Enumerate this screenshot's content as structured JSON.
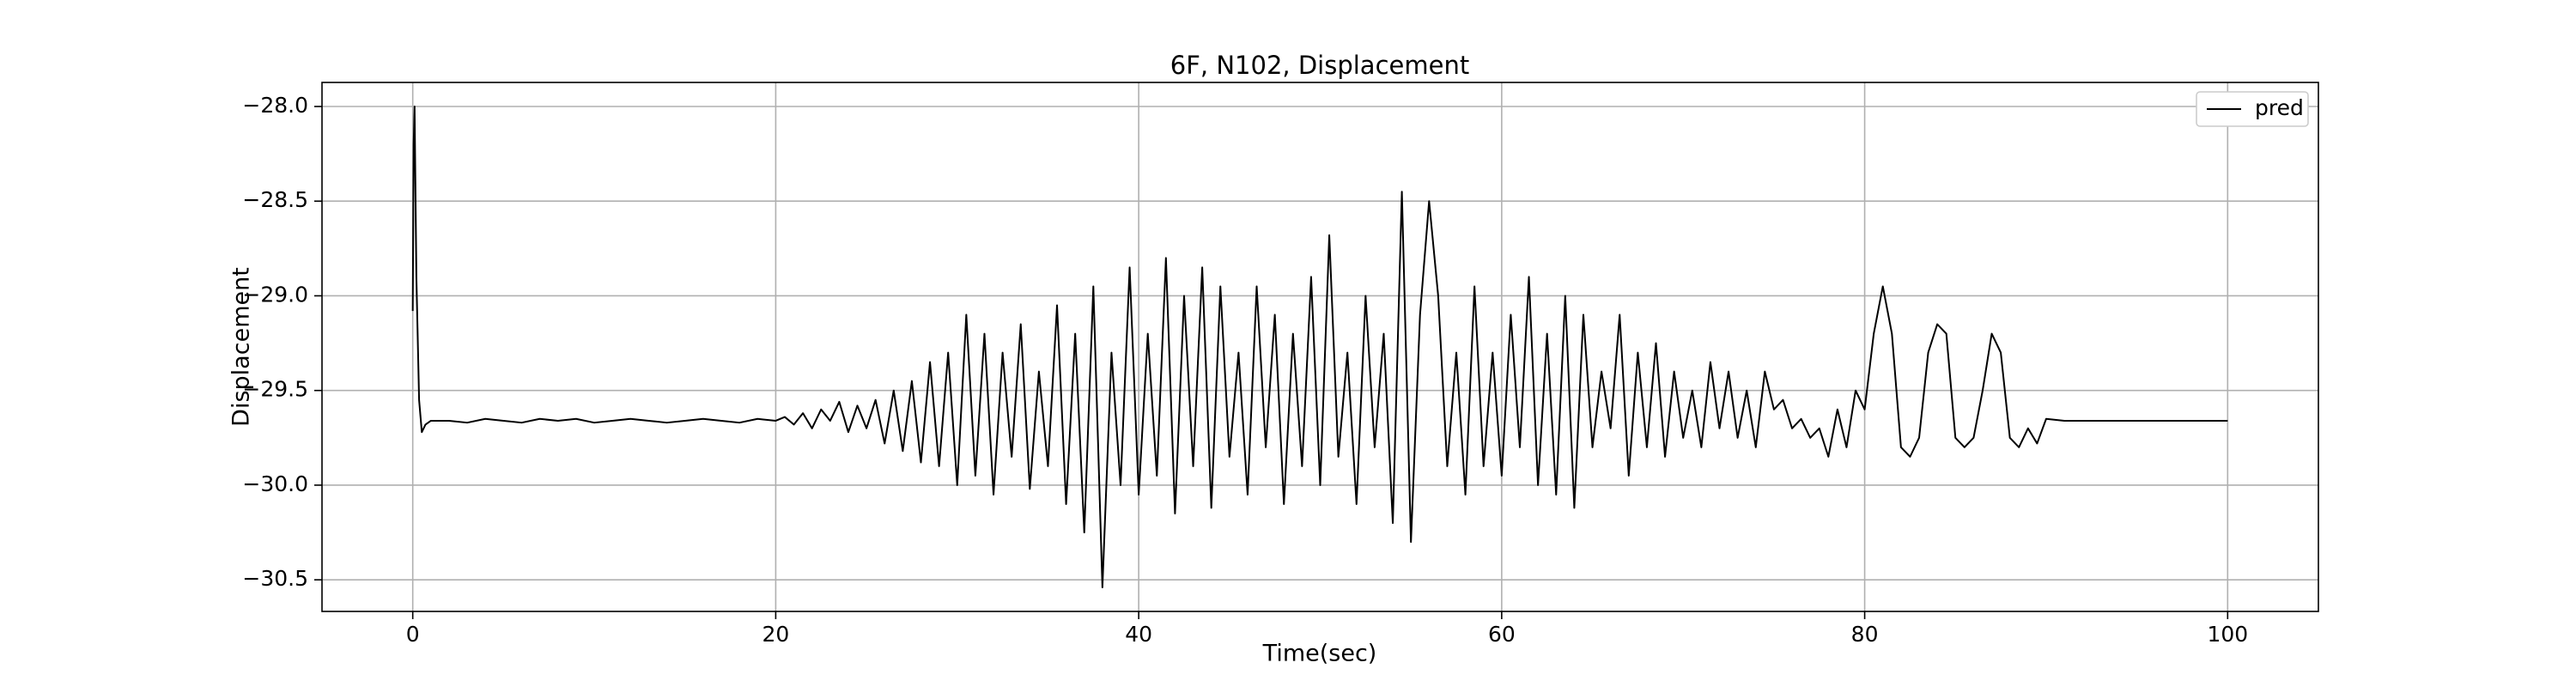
{
  "chart_data": {
    "type": "line",
    "title": "6F, N102, Displacement",
    "x_label": "Time(sec)",
    "y_label": "Displacement",
    "legend": "upper right",
    "grid": true,
    "xlim": [
      -5,
      105
    ],
    "ylim": [
      -30.667,
      -27.873
    ],
    "xticks": [
      0,
      20,
      40,
      60,
      80,
      100
    ],
    "yticks": [
      {
        "value": -28.0,
        "label": "−28.0"
      },
      {
        "value": -28.5,
        "label": "−28.5"
      },
      {
        "value": -29.0,
        "label": "−29.0"
      },
      {
        "value": -29.5,
        "label": "−29.5"
      },
      {
        "value": -30.0,
        "label": "−30.0"
      },
      {
        "value": -30.5,
        "label": "−30.5"
      }
    ],
    "x": [
      0,
      0.05,
      0.1,
      0.2,
      0.35,
      0.5,
      0.7,
      1,
      2,
      3,
      4,
      5,
      6,
      7,
      8,
      9,
      10,
      11,
      12,
      13,
      14,
      15,
      16,
      17,
      18,
      19,
      20,
      20.5,
      21,
      21.5,
      22,
      22.5,
      23,
      23.5,
      24,
      24.5,
      25,
      25.5,
      26,
      26.5,
      27,
      27.5,
      28,
      28.5,
      29,
      29.5,
      30,
      30.5,
      31,
      31.5,
      32,
      32.5,
      33,
      33.5,
      34,
      34.5,
      35,
      35.5,
      36,
      36.5,
      37,
      37.5,
      38,
      38.5,
      39,
      39.5,
      40,
      40.5,
      41,
      41.5,
      42,
      42.5,
      43,
      43.5,
      44,
      44.5,
      45,
      45.5,
      46,
      46.5,
      47,
      47.5,
      48,
      48.5,
      49,
      49.5,
      50,
      50.5,
      51,
      51.5,
      52,
      52.5,
      53,
      53.5,
      54,
      54.5,
      55,
      55.5,
      56,
      56.5,
      57,
      57.5,
      58,
      58.5,
      59,
      59.5,
      60,
      60.5,
      61,
      61.5,
      62,
      62.5,
      63,
      63.5,
      64,
      64.5,
      65,
      65.5,
      66,
      66.5,
      67,
      67.5,
      68,
      68.5,
      69,
      69.5,
      70,
      70.5,
      71,
      71.5,
      72,
      72.5,
      73,
      73.5,
      74,
      74.5,
      75,
      75.5,
      76,
      76.5,
      77,
      77.5,
      78,
      78.5,
      79,
      79.5,
      80,
      80.5,
      81,
      81.5,
      82,
      82.5,
      83,
      83.5,
      84,
      84.5,
      85,
      85.5,
      86,
      86.5,
      87,
      87.5,
      88,
      88.5,
      89,
      89.5,
      90,
      91,
      95,
      100
    ],
    "series": [
      {
        "name": "pred",
        "color": "#000000",
        "values": [
          -29.08,
          -28.2,
          -28.0,
          -28.9,
          -29.55,
          -29.72,
          -29.68,
          -29.66,
          -29.66,
          -29.67,
          -29.65,
          -29.66,
          -29.67,
          -29.65,
          -29.66,
          -29.65,
          -29.67,
          -29.66,
          -29.65,
          -29.66,
          -29.67,
          -29.66,
          -29.65,
          -29.66,
          -29.67,
          -29.65,
          -29.66,
          -29.64,
          -29.68,
          -29.62,
          -29.7,
          -29.6,
          -29.66,
          -29.56,
          -29.72,
          -29.58,
          -29.7,
          -29.55,
          -29.78,
          -29.5,
          -29.82,
          -29.45,
          -29.88,
          -29.35,
          -29.9,
          -29.3,
          -30.0,
          -29.1,
          -29.95,
          -29.2,
          -30.05,
          -29.3,
          -29.85,
          -29.15,
          -30.02,
          -29.4,
          -29.9,
          -29.05,
          -30.1,
          -29.2,
          -30.25,
          -28.95,
          -30.54,
          -29.3,
          -30.0,
          -28.85,
          -30.05,
          -29.2,
          -29.95,
          -28.8,
          -30.15,
          -29.0,
          -29.9,
          -28.85,
          -30.12,
          -28.95,
          -29.85,
          -29.3,
          -30.05,
          -28.95,
          -29.8,
          -29.1,
          -30.1,
          -29.2,
          -29.9,
          -28.9,
          -30.0,
          -28.68,
          -29.85,
          -29.3,
          -30.1,
          -29.0,
          -29.8,
          -29.2,
          -30.2,
          -28.45,
          -30.3,
          -29.1,
          -28.5,
          -29.0,
          -29.9,
          -29.3,
          -30.05,
          -28.95,
          -29.9,
          -29.3,
          -29.95,
          -29.1,
          -29.8,
          -28.9,
          -30.0,
          -29.2,
          -30.05,
          -29.0,
          -30.12,
          -29.1,
          -29.8,
          -29.4,
          -29.7,
          -29.1,
          -29.95,
          -29.3,
          -29.8,
          -29.25,
          -29.85,
          -29.4,
          -29.75,
          -29.5,
          -29.8,
          -29.35,
          -29.7,
          -29.4,
          -29.75,
          -29.5,
          -29.8,
          -29.4,
          -29.6,
          -29.55,
          -29.7,
          -29.65,
          -29.75,
          -29.7,
          -29.85,
          -29.6,
          -29.8,
          -29.5,
          -29.6,
          -29.2,
          -28.95,
          -29.2,
          -29.8,
          -29.85,
          -29.75,
          -29.3,
          -29.15,
          -29.2,
          -29.75,
          -29.8,
          -29.75,
          -29.5,
          -29.2,
          -29.3,
          -29.75,
          -29.8,
          -29.7,
          -29.78,
          -29.65,
          -29.66,
          -29.66,
          -29.66
        ]
      }
    ]
  }
}
